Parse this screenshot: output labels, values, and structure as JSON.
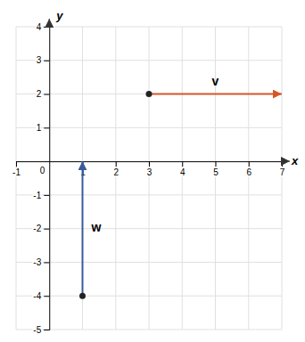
{
  "chart_data": {
    "type": "vector",
    "xlabel": "x",
    "ylabel": "y",
    "xlim": [
      -1,
      7
    ],
    "ylim": [
      -5,
      4
    ],
    "xticks": [
      -1,
      1,
      2,
      3,
      4,
      5,
      6,
      7
    ],
    "yticks": [
      -5,
      -4,
      -3,
      -2,
      -1,
      1,
      2,
      3,
      4
    ],
    "grid": true,
    "annotations": [
      {
        "text": "0",
        "x": 0,
        "y": 0
      }
    ],
    "series": [
      {
        "name": "v",
        "color": "#d4572a",
        "start": [
          3,
          2
        ],
        "end": [
          7,
          2
        ],
        "marker": "circle"
      },
      {
        "name": "w",
        "color": "#3a5a9c",
        "start": [
          1,
          -4
        ],
        "end": [
          1,
          0
        ],
        "marker": "circle"
      }
    ]
  }
}
